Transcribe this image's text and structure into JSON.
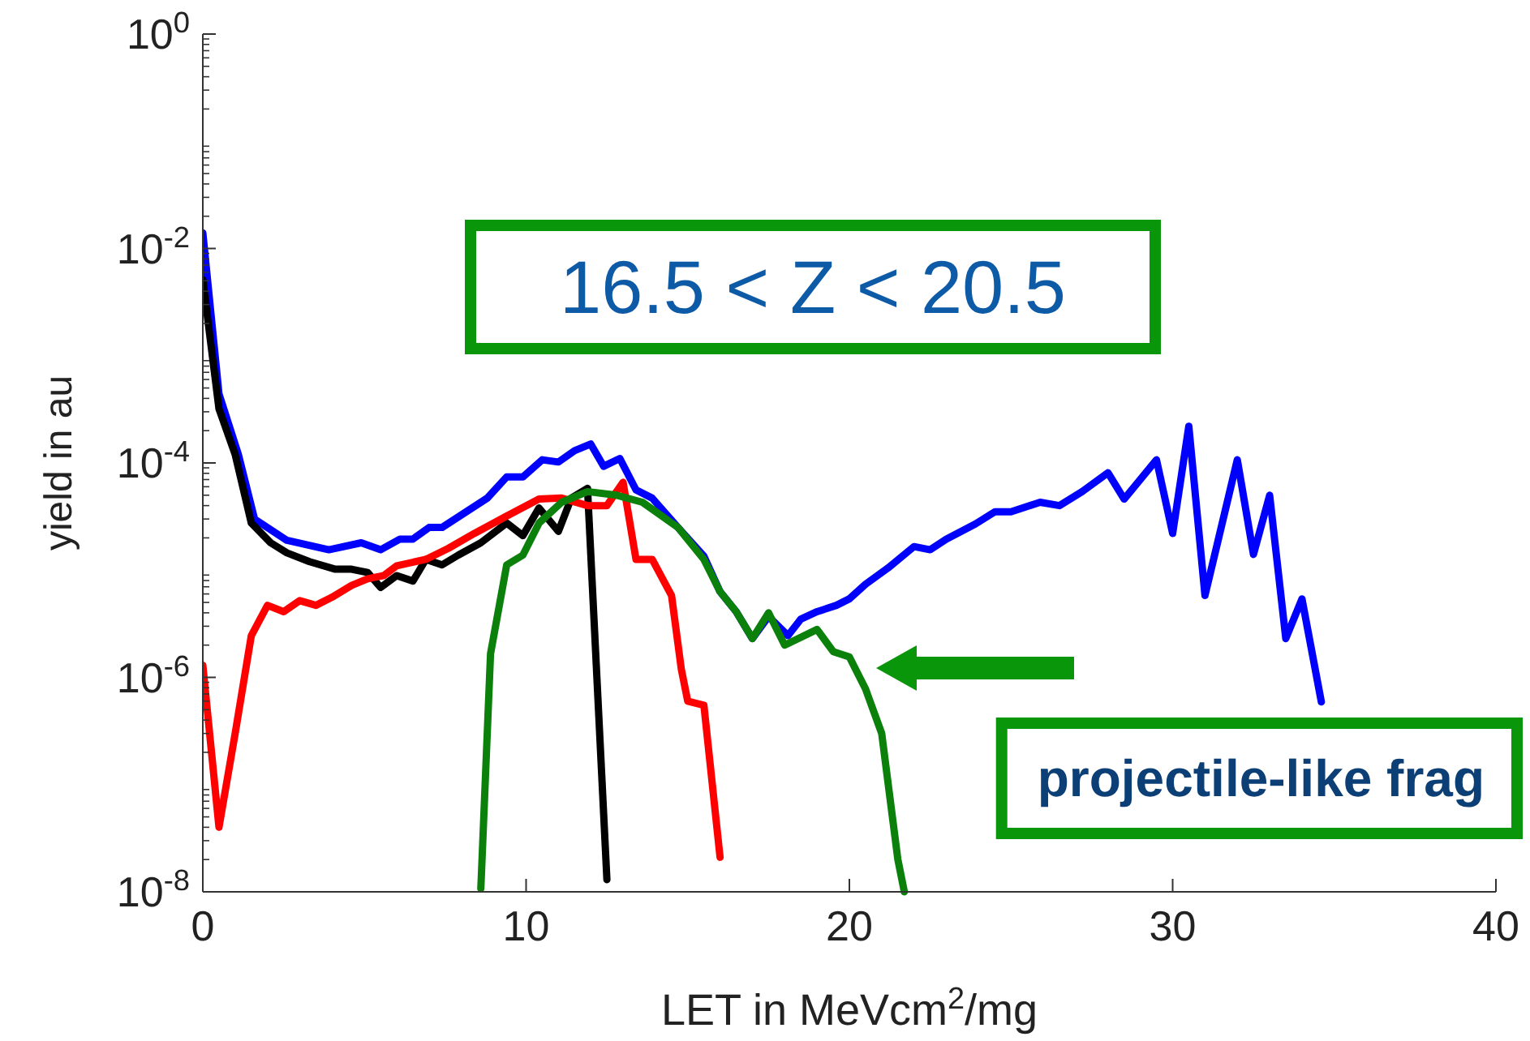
{
  "chart_data": {
    "type": "line",
    "xlabel": "LET in MeVcm$^{2}$/mg",
    "ylabel": "yield in au",
    "xlim": [
      0,
      40
    ],
    "xticks": [
      0,
      10,
      20,
      30,
      40
    ],
    "ylim": [
      1e-08,
      1
    ],
    "yticks": [
      {
        "value": 1e-08,
        "label": "10$^{-8}$"
      },
      {
        "value": 1e-06,
        "label": "10$^{-6}$"
      },
      {
        "value": 0.0001,
        "label": "10$^{-4}$"
      },
      {
        "value": 0.01,
        "label": "10$^{-2}$"
      },
      {
        "value": 1,
        "label": "10$^{0}$"
      }
    ],
    "log": "y",
    "grid": false,
    "marker": "none",
    "line_style": "solid",
    "annotations": [
      "16.5 < Z < 20.5",
      "projectile-like frag"
    ],
    "series": [
      {
        "color": "#0000ff",
        "x": [
          0,
          0.5,
          1.1,
          1.6,
          2.6,
          3.9,
          4.9,
          5.5,
          6.1,
          6.5,
          7.0,
          7.4,
          8.8,
          9.4,
          9.9,
          10.5,
          11.0,
          11.5,
          12.0,
          12.4,
          12.9,
          13.4,
          13.9,
          14.7,
          15.5,
          16.0,
          16.5,
          17.0,
          17.5,
          18.1,
          18.5,
          19.0,
          19.6,
          20.0,
          20.5,
          21.2,
          22.0,
          22.5,
          23.0,
          23.9,
          24.5,
          25.0,
          25.9,
          26.5,
          27.2,
          28.0,
          28.5,
          29.5,
          30.0,
          30.5,
          31.0,
          32.0,
          32.5,
          33.0,
          33.5,
          34.0,
          34.6
        ],
        "values": [
          0.014,
          0.00044,
          0.00012,
          3e-05,
          1.9e-05,
          1.55e-05,
          1.8e-05,
          1.55e-05,
          1.95e-05,
          1.95e-05,
          2.5e-05,
          2.5e-05,
          4.7e-05,
          7.4e-05,
          7.4e-05,
          0.000107,
          0.000102,
          0.00013,
          0.00015,
          9.3e-05,
          0.00011,
          5.6e-05,
          4.7e-05,
          2.5e-05,
          1.35e-05,
          6.3e-06,
          4.1e-06,
          2.3e-06,
          3.7e-06,
          2.45e-06,
          3.5e-06,
          4.1e-06,
          4.7e-06,
          5.4e-06,
          7.4e-06,
          1.05e-05,
          1.66e-05,
          1.55e-05,
          1.95e-05,
          2.7e-05,
          3.5e-05,
          3.5e-05,
          4.3e-05,
          4e-05,
          5.4e-05,
          8.1e-05,
          4.6e-05,
          0.000107,
          2.2e-05,
          0.00022,
          5.8e-06,
          0.000107,
          1.4e-05,
          5e-05,
          2.3e-06,
          5.4e-06,
          5.9e-07
        ]
      },
      {
        "color": "#000000",
        "x": [
          0,
          0.5,
          1.0,
          1.5,
          2.1,
          2.6,
          3.3,
          4.1,
          4.6,
          5.1,
          5.5,
          6.0,
          6.5,
          6.9,
          7.4,
          7.9,
          8.6,
          9.4,
          9.9,
          10.4,
          11.0,
          11.4,
          11.9,
          12.5
        ],
        "values": [
          0.0051,
          0.00032,
          0.00012,
          2.75e-05,
          1.8e-05,
          1.45e-05,
          1.2e-05,
          1.02e-05,
          1.02e-05,
          9.5e-06,
          6.9e-06,
          8.9e-06,
          7.9e-06,
          1.26e-05,
          1.12e-05,
          1.38e-05,
          1.8e-05,
          2.75e-05,
          2.1e-05,
          3.8e-05,
          2.3e-05,
          4.7e-05,
          5.8e-05,
          1.3e-08
        ]
      },
      {
        "color": "#ff0000",
        "x": [
          0,
          0.5,
          1.0,
          1.5,
          2.0,
          2.5,
          3.0,
          3.5,
          4.0,
          4.6,
          5.1,
          5.6,
          6.0,
          6.9,
          7.6,
          8.4,
          9.4,
          10.4,
          11.1,
          11.9,
          12.5,
          13.0,
          13.4,
          13.9,
          14.5,
          14.8,
          15.0,
          15.5,
          16.0
        ],
        "values": [
          1.3e-06,
          4e-08,
          3e-07,
          2.45e-06,
          4.7e-06,
          4.1e-06,
          5.2e-06,
          4.7e-06,
          5.6e-06,
          7.2e-06,
          8.3e-06,
          8.9e-06,
          1.1e-05,
          1.26e-05,
          1.6e-05,
          2.2e-05,
          3.2e-05,
          4.6e-05,
          4.7e-05,
          4e-05,
          4e-05,
          6.6e-05,
          1.26e-05,
          1.26e-05,
          5.8e-06,
          1.2e-06,
          6e-07,
          5.5e-07,
          2.1e-08
        ]
      },
      {
        "color": "#0b800b",
        "x": [
          8.6,
          8.9,
          9.4,
          9.9,
          10.4,
          11.1,
          11.9,
          12.8,
          13.6,
          14.7,
          15.5,
          16.0,
          16.5,
          17.0,
          17.5,
          18.0,
          19.0,
          19.5,
          20.0,
          20.5,
          21.0,
          21.5,
          21.7
        ],
        "values": [
          1.07e-08,
          1.66e-06,
          1.12e-05,
          1.38e-05,
          2.75e-05,
          4.3e-05,
          5.4e-05,
          5e-05,
          4.3e-05,
          2.5e-05,
          1.26e-05,
          6.3e-06,
          4.1e-06,
          2.3e-06,
          4e-06,
          2e-06,
          2.8e-06,
          1.74e-06,
          1.55e-06,
          7.8e-07,
          3e-07,
          2e-08,
          1e-08
        ]
      }
    ]
  }
}
